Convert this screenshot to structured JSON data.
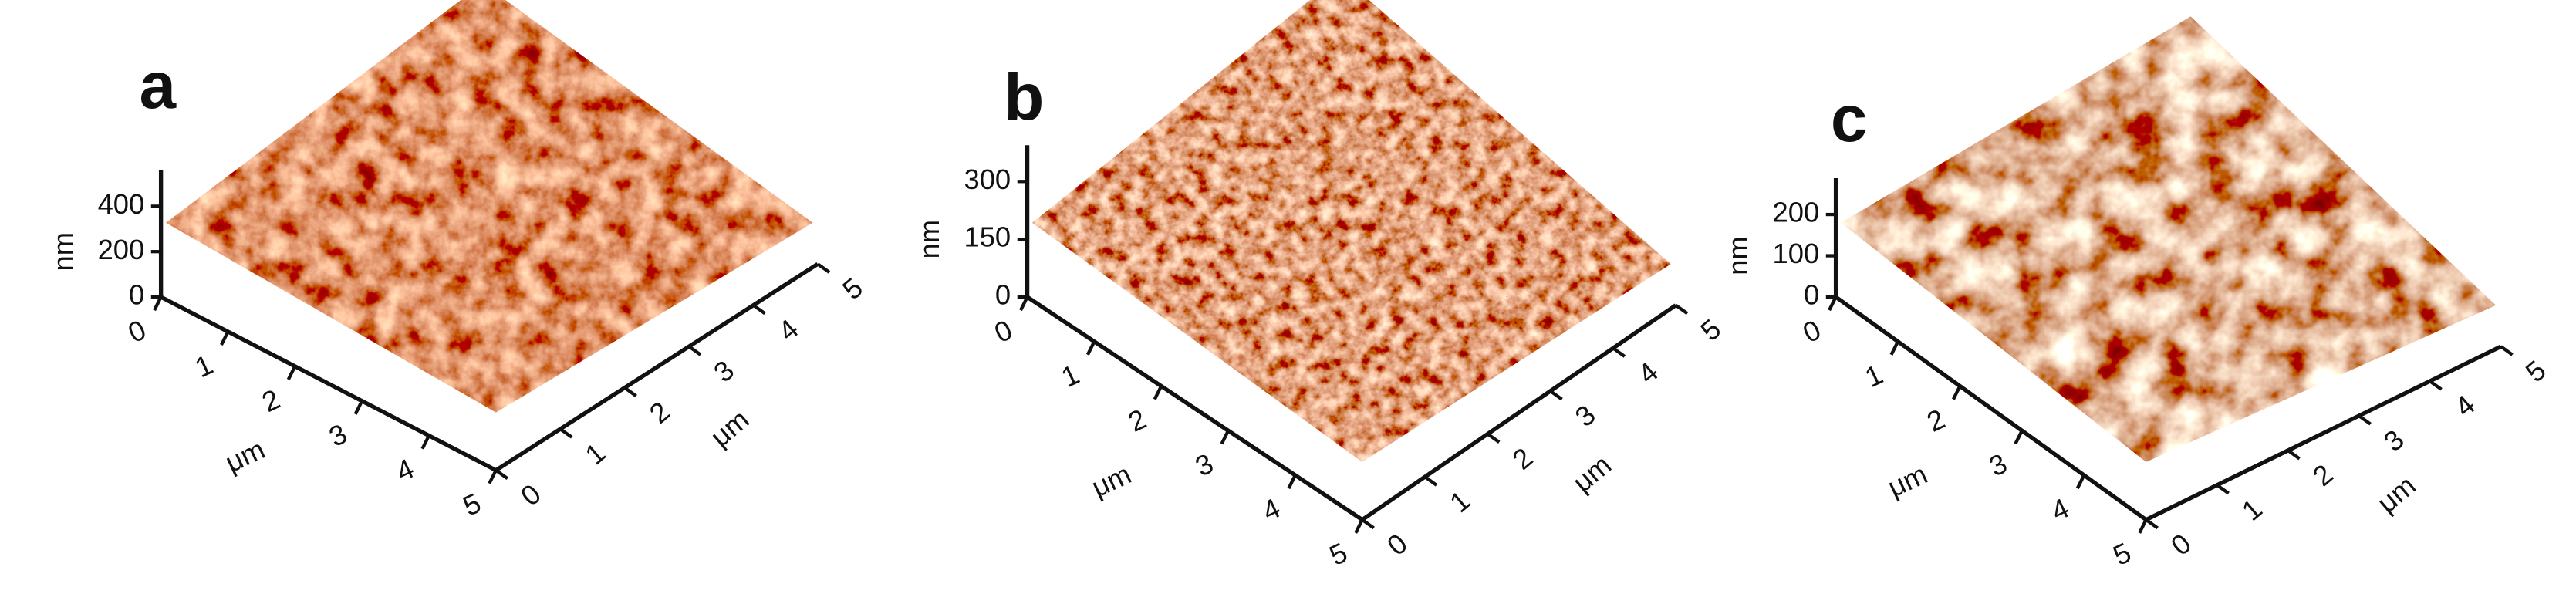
{
  "panels": [
    {
      "label": "a",
      "z_axis_title": "nm",
      "z_ticks": [
        "400",
        "200",
        "0"
      ],
      "x_ticks": [
        "0",
        "1",
        "2",
        "3",
        "4",
        "5"
      ],
      "x_axis_title": "μm",
      "y_ticks": [
        "0",
        "1",
        "2",
        "3",
        "4",
        "5"
      ],
      "y_axis_title": "μm"
    },
    {
      "label": "b",
      "z_axis_title": "nm",
      "z_ticks": [
        "300",
        "150",
        "0"
      ],
      "x_ticks": [
        "0",
        "1",
        "2",
        "3",
        "4",
        "5"
      ],
      "x_axis_title": "μm",
      "y_ticks": [
        "0",
        "1",
        "2",
        "3",
        "4",
        "5"
      ],
      "y_axis_title": "μm"
    },
    {
      "label": "c",
      "z_axis_title": "nm",
      "z_ticks": [
        "200",
        "100",
        "0"
      ],
      "x_ticks": [
        "0",
        "1",
        "2",
        "3",
        "4",
        "5"
      ],
      "x_axis_title": "μm",
      "y_ticks": [
        "0",
        "1",
        "2",
        "3",
        "4",
        "5"
      ],
      "y_axis_title": "μm"
    }
  ]
}
